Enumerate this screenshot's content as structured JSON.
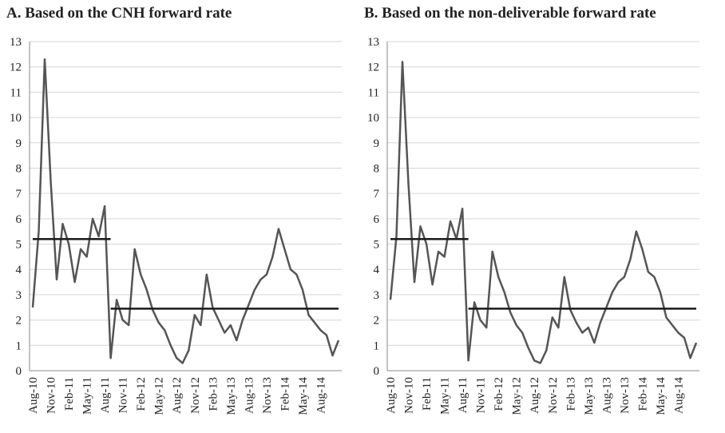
{
  "chart_data": [
    {
      "type": "line",
      "title": "A. Based on the CNH forward rate",
      "categories": [
        "Aug-10",
        null,
        null,
        "Nov-10",
        null,
        null,
        "Feb-11",
        null,
        null,
        "May-11",
        null,
        null,
        "Aug-11",
        null,
        null,
        "Nov-11",
        null,
        null,
        "Feb-12",
        null,
        null,
        "May-12",
        null,
        null,
        "Aug-12",
        null,
        null,
        "Nov-12",
        null,
        null,
        "Feb-13",
        null,
        null,
        "May-13",
        null,
        null,
        "Aug-13",
        null,
        null,
        "Nov-13",
        null,
        null,
        "Feb-14",
        null,
        null,
        "May-14",
        null,
        null,
        "Aug-14",
        null,
        null,
        null
      ],
      "series": [
        {
          "color": "#555555",
          "values": [
            2.5,
            5.5,
            12.3,
            7.5,
            3.6,
            5.8,
            5.0,
            3.5,
            4.8,
            4.5,
            6.0,
            5.3,
            6.5,
            0.5,
            2.8,
            2.0,
            1.8,
            4.8,
            3.8,
            3.2,
            2.4,
            1.9,
            1.6,
            1.0,
            0.5,
            0.3,
            0.8,
            2.2,
            1.8,
            3.8,
            2.5,
            2.0,
            1.5,
            1.8,
            1.2,
            2.0,
            2.6,
            3.2,
            3.6,
            3.8,
            4.5,
            5.6,
            4.8,
            4.0,
            3.8,
            3.2,
            2.2,
            1.9,
            1.6,
            1.4,
            0.6,
            1.2
          ]
        },
        {
          "color": "#1a1a1a",
          "values": [
            5.2,
            5.2,
            5.2,
            5.2,
            5.2,
            5.2,
            5.2,
            5.2,
            5.2,
            5.2,
            5.2,
            5.2,
            5.2,
            5.2,
            null,
            null,
            null,
            null,
            null,
            null,
            null,
            null,
            null,
            null,
            null,
            null,
            null,
            null,
            null,
            null,
            null,
            null,
            null,
            null,
            null,
            null,
            null,
            null,
            null,
            null,
            null,
            null,
            null,
            null,
            null,
            null,
            null,
            null,
            null,
            null,
            null,
            null
          ]
        },
        {
          "color": "#1a1a1a",
          "values": [
            null,
            null,
            null,
            null,
            null,
            null,
            null,
            null,
            null,
            null,
            null,
            null,
            null,
            2.45,
            2.45,
            2.45,
            2.45,
            2.45,
            2.45,
            2.45,
            2.45,
            2.45,
            2.45,
            2.45,
            2.45,
            2.45,
            2.45,
            2.45,
            2.45,
            2.45,
            2.45,
            2.45,
            2.45,
            2.45,
            2.45,
            2.45,
            2.45,
            2.45,
            2.45,
            2.45,
            2.45,
            2.45,
            2.45,
            2.45,
            2.45,
            2.45,
            2.45,
            2.45,
            2.45,
            2.45,
            2.45,
            2.45
          ]
        }
      ],
      "ylim": [
        0,
        13
      ],
      "yticks": [
        0,
        1,
        2,
        3,
        4,
        5,
        6,
        7,
        8,
        9,
        10,
        11,
        12,
        13
      ],
      "grid": true
    },
    {
      "type": "line",
      "title": "B. Based on the non-deliverable forward rate",
      "categories": [
        "Aug-10",
        null,
        null,
        "Nov-10",
        null,
        null,
        "Feb-11",
        null,
        null,
        "May-11",
        null,
        null,
        "Aug-11",
        null,
        null,
        "Nov-11",
        null,
        null,
        "Feb-12",
        null,
        null,
        "May-12",
        null,
        null,
        "Aug-12",
        null,
        null,
        "Nov-12",
        null,
        null,
        "Feb-13",
        null,
        null,
        "May-13",
        null,
        null,
        "Aug-13",
        null,
        null,
        "Nov-13",
        null,
        null,
        "Feb-14",
        null,
        null,
        "May-14",
        null,
        null,
        "Aug-14",
        null,
        null,
        null
      ],
      "series": [
        {
          "color": "#555555",
          "values": [
            2.8,
            5.3,
            12.2,
            7.4,
            3.5,
            5.7,
            5.0,
            3.4,
            4.7,
            4.5,
            5.9,
            5.2,
            6.4,
            0.4,
            2.7,
            2.0,
            1.7,
            4.7,
            3.7,
            3.1,
            2.3,
            1.8,
            1.5,
            0.9,
            0.4,
            0.3,
            0.8,
            2.1,
            1.7,
            3.7,
            2.4,
            1.9,
            1.5,
            1.7,
            1.1,
            1.9,
            2.5,
            3.1,
            3.5,
            3.7,
            4.4,
            5.5,
            4.8,
            3.9,
            3.7,
            3.1,
            2.1,
            1.8,
            1.5,
            1.3,
            0.5,
            1.1
          ]
        },
        {
          "color": "#1a1a1a",
          "values": [
            5.2,
            5.2,
            5.2,
            5.2,
            5.2,
            5.2,
            5.2,
            5.2,
            5.2,
            5.2,
            5.2,
            5.2,
            5.2,
            5.2,
            null,
            null,
            null,
            null,
            null,
            null,
            null,
            null,
            null,
            null,
            null,
            null,
            null,
            null,
            null,
            null,
            null,
            null,
            null,
            null,
            null,
            null,
            null,
            null,
            null,
            null,
            null,
            null,
            null,
            null,
            null,
            null,
            null,
            null,
            null,
            null,
            null,
            null
          ]
        },
        {
          "color": "#1a1a1a",
          "values": [
            null,
            null,
            null,
            null,
            null,
            null,
            null,
            null,
            null,
            null,
            null,
            null,
            null,
            2.45,
            2.45,
            2.45,
            2.45,
            2.45,
            2.45,
            2.45,
            2.45,
            2.45,
            2.45,
            2.45,
            2.45,
            2.45,
            2.45,
            2.45,
            2.45,
            2.45,
            2.45,
            2.45,
            2.45,
            2.45,
            2.45,
            2.45,
            2.45,
            2.45,
            2.45,
            2.45,
            2.45,
            2.45,
            2.45,
            2.45,
            2.45,
            2.45,
            2.45,
            2.45,
            2.45,
            2.45,
            2.45,
            2.45
          ]
        }
      ],
      "ylim": [
        0,
        13
      ],
      "yticks": [
        0,
        1,
        2,
        3,
        4,
        5,
        6,
        7,
        8,
        9,
        10,
        11,
        12,
        13
      ],
      "grid": true
    }
  ]
}
